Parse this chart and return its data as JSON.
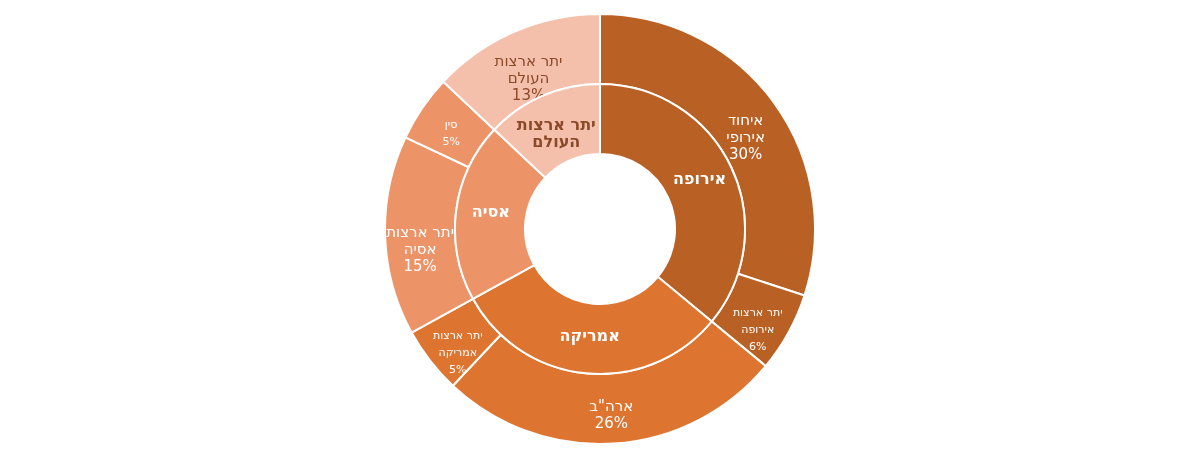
{
  "chart_data": {
    "type": "donut",
    "categories": [
      "איחוד אירופי",
      "יתר ארצות אירופה",
      "ארה\"ב",
      "יתר ארצות אמריקה",
      "יתר ארצות אסיה",
      "סין",
      "יתר ארצות העולם"
    ],
    "annotations": [
      "אירופה",
      "אמריקה",
      "אסיה",
      "יתר ארצות העולם"
    ],
    "series": [
      {
        "values": [
          30,
          6,
          26,
          5,
          15,
          5,
          13
        ],
        "colors": [
          "#b96024",
          "#b96024",
          "#dd7430",
          "#dd7430",
          "#ec9468",
          "#ec9468",
          "#f4c0ac"
        ],
        "value_labels": [
          "30%",
          "6%",
          "26%",
          "5%",
          "15%",
          "5%",
          "13%"
        ]
      },
      {
        "values": [
          36,
          null,
          31,
          null,
          20,
          null,
          13
        ],
        "colors": [
          "#b96024",
          null,
          "#dd7430",
          null,
          "#ec9468",
          null,
          "#f4c0ac"
        ]
      }
    ]
  }
}
